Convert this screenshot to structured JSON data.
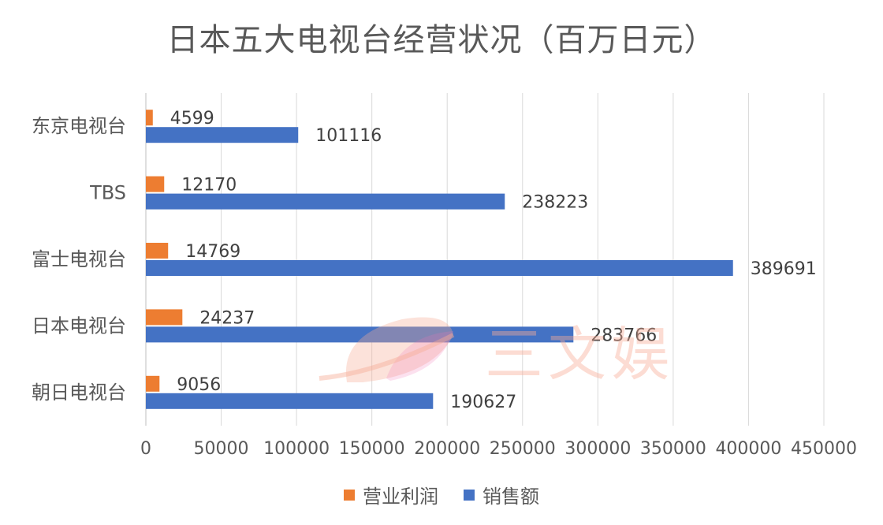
{
  "chart_data": {
    "type": "bar",
    "orientation": "horizontal",
    "title": "日本五大电视台经营状况（百万日元）",
    "categories": [
      "东京电视台",
      "TBS",
      "富士电视台",
      "日本电视台",
      "朝日电视台"
    ],
    "series": [
      {
        "name": "营业利润",
        "color": "#ED7D31",
        "values": [
          4599,
          12170,
          14769,
          24237,
          9056
        ]
      },
      {
        "name": "销售额",
        "color": "#4472C4",
        "values": [
          101116,
          238223,
          389691,
          283766,
          190627
        ]
      }
    ],
    "xlim": [
      0,
      450000
    ],
    "xticks": [
      0,
      50000,
      100000,
      150000,
      200000,
      250000,
      300000,
      350000,
      400000,
      450000
    ],
    "grid": true,
    "legend_position": "bottom",
    "data_labels": true
  },
  "watermark": {
    "text": "三文娱",
    "color": "#F7AC96"
  }
}
